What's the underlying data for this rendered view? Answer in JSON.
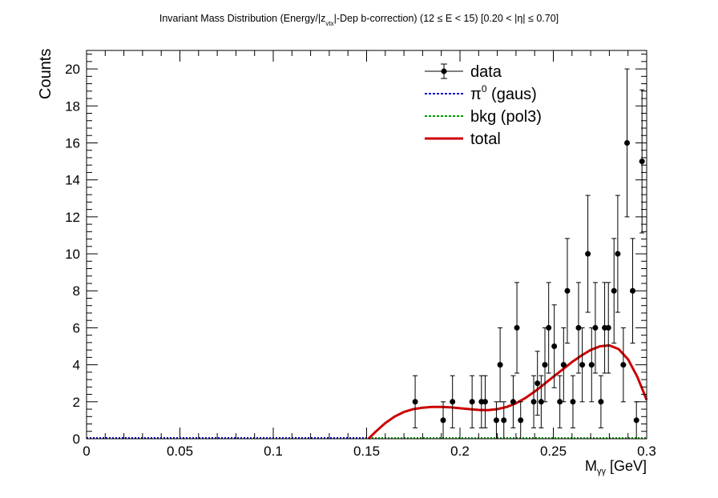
{
  "chart_data": {
    "type": "scatter",
    "title": {
      "pre": "Invariant Mass Distribution (Energy/|z",
      "sub": "vtx",
      "post": "|-Dep b-correction)   (12 ≤ E < 15)   [0.20 < |η| ≤ 0.70]"
    },
    "xlabel": {
      "main": "M",
      "sub": "γγ",
      "post": "  [GeV]"
    },
    "ylabel": "Counts",
    "xlim": [
      0,
      0.3
    ],
    "ylim": [
      0,
      21
    ],
    "x_ticks": [
      0,
      0.05,
      0.1,
      0.15,
      0.2,
      0.25,
      0.3
    ],
    "x_tick_labels": [
      "0",
      "0.05",
      "0.1",
      "0.15",
      "0.2",
      "0.25",
      "0.3"
    ],
    "y_ticks": [
      0,
      2,
      4,
      6,
      8,
      10,
      12,
      14,
      16,
      18,
      20
    ],
    "y_tick_labels": [
      "0",
      "2",
      "4",
      "6",
      "8",
      "10",
      "12",
      "14",
      "16",
      "18",
      "20"
    ],
    "grid": false,
    "legend_position": "top-right",
    "legend": [
      {
        "label": "data",
        "style": "marker",
        "color": "#000000"
      },
      {
        "label": "π",
        "sup": "0",
        "label_post": " (gaus)",
        "style": "dotted",
        "color": "#0000cc"
      },
      {
        "label": "bkg (pol3)",
        "style": "dotted",
        "color": "#009900"
      },
      {
        "label": "total",
        "style": "solid",
        "color": "#cc0000"
      }
    ],
    "data_series": {
      "name": "data",
      "points": [
        {
          "x": 0.176,
          "y": 2,
          "err": 1.41
        },
        {
          "x": 0.191,
          "y": 1,
          "err": 1.0
        },
        {
          "x": 0.196,
          "y": 2,
          "err": 1.41
        },
        {
          "x": 0.2065,
          "y": 2,
          "err": 1.41
        },
        {
          "x": 0.2115,
          "y": 2,
          "err": 1.41
        },
        {
          "x": 0.2135,
          "y": 2,
          "err": 1.41
        },
        {
          "x": 0.2195,
          "y": 1,
          "err": 1.0
        },
        {
          "x": 0.2215,
          "y": 4,
          "err": 2.0
        },
        {
          "x": 0.2235,
          "y": 1,
          "err": 1.0
        },
        {
          "x": 0.2285,
          "y": 2,
          "err": 1.41
        },
        {
          "x": 0.2305,
          "y": 6,
          "err": 2.45
        },
        {
          "x": 0.2325,
          "y": 1,
          "err": 1.0
        },
        {
          "x": 0.2395,
          "y": 2,
          "err": 1.41
        },
        {
          "x": 0.2415,
          "y": 3,
          "err": 1.73
        },
        {
          "x": 0.2435,
          "y": 2,
          "err": 1.41
        },
        {
          "x": 0.2455,
          "y": 4,
          "err": 2.0
        },
        {
          "x": 0.2475,
          "y": 6,
          "err": 2.45
        },
        {
          "x": 0.2505,
          "y": 5,
          "err": 2.24
        },
        {
          "x": 0.2535,
          "y": 2,
          "err": 1.41
        },
        {
          "x": 0.2555,
          "y": 4,
          "err": 2.0
        },
        {
          "x": 0.2575,
          "y": 8,
          "err": 2.83
        },
        {
          "x": 0.2605,
          "y": 2,
          "err": 1.41
        },
        {
          "x": 0.2635,
          "y": 6,
          "err": 2.45
        },
        {
          "x": 0.2655,
          "y": 4,
          "err": 2.0
        },
        {
          "x": 0.2685,
          "y": 10,
          "err": 3.16
        },
        {
          "x": 0.2705,
          "y": 4,
          "err": 2.0
        },
        {
          "x": 0.2725,
          "y": 6,
          "err": 2.45
        },
        {
          "x": 0.2755,
          "y": 2,
          "err": 1.41
        },
        {
          "x": 0.2775,
          "y": 6,
          "err": 2.45
        },
        {
          "x": 0.2795,
          "y": 6,
          "err": 2.45
        },
        {
          "x": 0.2825,
          "y": 8,
          "err": 2.83
        },
        {
          "x": 0.2845,
          "y": 10,
          "err": 3.16
        },
        {
          "x": 0.2875,
          "y": 4,
          "err": 2.0
        },
        {
          "x": 0.2895,
          "y": 16,
          "err": 4.0
        },
        {
          "x": 0.2925,
          "y": 8,
          "err": 2.83
        },
        {
          "x": 0.2945,
          "y": 1,
          "err": 1.0
        },
        {
          "x": 0.2975,
          "y": 15,
          "err": 3.87
        }
      ]
    },
    "curves": [
      {
        "name": "total",
        "color": "#cc0000",
        "points": [
          [
            0.151,
            0.0
          ],
          [
            0.155,
            0.4
          ],
          [
            0.16,
            0.85
          ],
          [
            0.165,
            1.2
          ],
          [
            0.17,
            1.45
          ],
          [
            0.175,
            1.6
          ],
          [
            0.18,
            1.68
          ],
          [
            0.185,
            1.72
          ],
          [
            0.19,
            1.72
          ],
          [
            0.195,
            1.7
          ],
          [
            0.2,
            1.65
          ],
          [
            0.205,
            1.6
          ],
          [
            0.21,
            1.56
          ],
          [
            0.215,
            1.55
          ],
          [
            0.22,
            1.6
          ],
          [
            0.225,
            1.72
          ],
          [
            0.23,
            1.92
          ],
          [
            0.235,
            2.2
          ],
          [
            0.24,
            2.55
          ],
          [
            0.245,
            2.95
          ],
          [
            0.25,
            3.35
          ],
          [
            0.255,
            3.75
          ],
          [
            0.26,
            4.15
          ],
          [
            0.265,
            4.5
          ],
          [
            0.27,
            4.8
          ],
          [
            0.275,
            5.0
          ],
          [
            0.28,
            5.05
          ],
          [
            0.285,
            4.85
          ],
          [
            0.29,
            4.3
          ],
          [
            0.295,
            3.35
          ],
          [
            0.3,
            2.1
          ]
        ]
      }
    ]
  }
}
